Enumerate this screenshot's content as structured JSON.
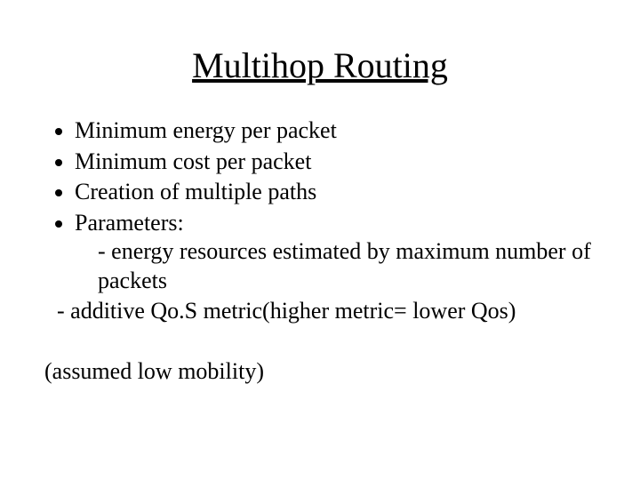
{
  "slide": {
    "title": "Multihop Routing",
    "bullets": {
      "b1": "Minimum energy per packet",
      "b2": "Minimum cost per packet",
      "b3": "Creation of multiple paths",
      "b4": "Parameters:",
      "b4_sub1": "- energy resources estimated by maximum number of packets",
      "b4_sub2": "- additive Qo.S metric(higher metric= lower Qos)"
    },
    "footnote": "(assumed low mobility)"
  },
  "style": {
    "background_color": "#ffffff",
    "text_color": "#000000",
    "title_fontsize_pt": 30,
    "body_fontsize_pt": 20,
    "font_family": "Times New Roman"
  }
}
